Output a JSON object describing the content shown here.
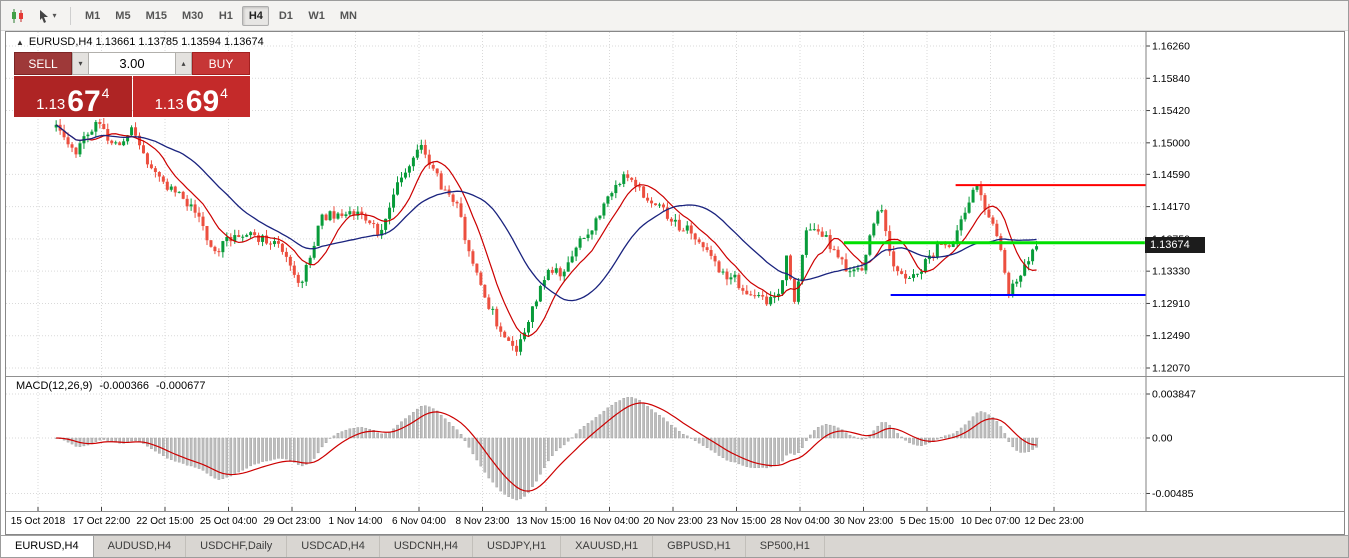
{
  "toolbar": {
    "timeframes": [
      {
        "label": "M1",
        "active": false
      },
      {
        "label": "M5",
        "active": false
      },
      {
        "label": "M15",
        "active": false
      },
      {
        "label": "M30",
        "active": false
      },
      {
        "label": "H1",
        "active": false
      },
      {
        "label": "H4",
        "active": true
      },
      {
        "label": "D1",
        "active": false
      },
      {
        "label": "W1",
        "active": false
      },
      {
        "label": "MN",
        "active": false
      }
    ]
  },
  "chart": {
    "header": "EURUSD,H4 1.13661 1.13785 1.13594 1.13674",
    "symbol": "EURUSD,H4",
    "current_price": "1.13674",
    "price_axis": [
      "1.16260",
      "1.15840",
      "1.15420",
      "1.15000",
      "1.14590",
      "1.14170",
      "1.13750",
      "1.13330",
      "1.12910",
      "1.12490",
      "1.12070"
    ],
    "time_axis": [
      "15 Oct 2018",
      "17 Oct 22:00",
      "22 Oct 15:00",
      "25 Oct 04:00",
      "29 Oct 23:00",
      "1 Nov 14:00",
      "6 Nov 04:00",
      "8 Nov 23:00",
      "13 Nov 15:00",
      "16 Nov 04:00",
      "20 Nov 23:00",
      "23 Nov 15:00",
      "28 Nov 04:00",
      "30 Nov 23:00",
      "5 Dec 15:00",
      "10 Dec 07:00",
      "12 Dec 23:00"
    ]
  },
  "trade_panel": {
    "sell_label": "SELL",
    "buy_label": "BUY",
    "volume": "3.00",
    "sell_price": {
      "base": "1.13",
      "pips": "67",
      "pipette": "4"
    },
    "buy_price": {
      "base": "1.13",
      "pips": "69",
      "pipette": "4"
    }
  },
  "macd": {
    "label": "MACD(12,26,9)",
    "value_main": "-0.000366",
    "value_signal": "-0.000677",
    "axis": [
      "0.003847",
      "0.00",
      "-0.00485"
    ]
  },
  "bottom_tabs": [
    {
      "label": "EURUSD,H4",
      "active": true
    },
    {
      "label": "AUDUSD,H4",
      "active": false
    },
    {
      "label": "USDCHF,Daily",
      "active": false
    },
    {
      "label": "USDCAD,H4",
      "active": false
    },
    {
      "label": "USDCNH,H4",
      "active": false
    },
    {
      "label": "USDJPY,H1",
      "active": false
    },
    {
      "label": "XAUUSD,H1",
      "active": false
    },
    {
      "label": "GBPUSD,H1",
      "active": false
    },
    {
      "label": "SP500,H1",
      "active": false
    }
  ],
  "chart_data": {
    "type": "candlestick",
    "instrument": "EURUSD",
    "timeframe": "H4",
    "current_ohlc": {
      "open": 1.13661,
      "high": 1.13785,
      "low": 1.13594,
      "close": 1.13674
    },
    "price_axis_values": [
      1.1626,
      1.1584,
      1.1542,
      1.15,
      1.1459,
      1.1417,
      1.1375,
      1.1333,
      1.1291,
      1.1249,
      1.1207
    ],
    "macd_axis_values": [
      0.003847,
      0,
      -0.00485
    ],
    "levels": [
      {
        "name": "resistance-line",
        "color": "#ff0000",
        "price": 1.1445,
        "x1": 0.833,
        "x2": 1.0,
        "width": 2
      },
      {
        "name": "pivot-line",
        "color": "#00e000",
        "price": 1.137,
        "x1": 0.735,
        "x2": 0.999,
        "width": 3
      },
      {
        "name": "support-line",
        "color": "#0000ff",
        "price": 1.1302,
        "x1": 0.776,
        "x2": 1.0,
        "width": 2
      }
    ],
    "indicators": {
      "ma_fast": {
        "type": "SMA",
        "period": 9,
        "color": "#cc0000"
      },
      "ma_slow": {
        "type": "SMA",
        "period": 26,
        "color": "#1a237e"
      },
      "macd": {
        "fast": 12,
        "slow": 26,
        "signal": 9,
        "histogram_color": "#bdbdbd",
        "signal_color": "#cc0000",
        "current_macd": -0.000366,
        "current_signal": -0.000677
      }
    },
    "colors": {
      "up": "#089b3a",
      "down": "#ec4f3f",
      "background": "#ffffff",
      "grid": "#d9d9d9"
    },
    "candle_count": 248,
    "candle_x_range": [
      0.044,
      0.904
    ],
    "seed": 20181212,
    "noise": 0.0014,
    "wick": 0.0008,
    "price_keyframes": [
      [
        0.0,
        1.152
      ],
      [
        0.02,
        1.149
      ],
      [
        0.041,
        1.153
      ],
      [
        0.061,
        1.1495
      ],
      [
        0.077,
        1.1515
      ],
      [
        0.097,
        1.147
      ],
      [
        0.117,
        1.144
      ],
      [
        0.138,
        1.1415
      ],
      [
        0.163,
        1.136
      ],
      [
        0.184,
        1.1385
      ],
      [
        0.204,
        1.1375
      ],
      [
        0.224,
        1.137
      ],
      [
        0.25,
        1.131
      ],
      [
        0.27,
        1.1405
      ],
      [
        0.291,
        1.141
      ],
      [
        0.311,
        1.1405
      ],
      [
        0.33,
        1.138
      ],
      [
        0.347,
        1.1445
      ],
      [
        0.372,
        1.1495
      ],
      [
        0.393,
        1.1445
      ],
      [
        0.408,
        1.142
      ],
      [
        0.423,
        1.135
      ],
      [
        0.439,
        1.1295
      ],
      [
        0.459,
        1.124
      ],
      [
        0.469,
        1.1233
      ],
      [
        0.485,
        1.128
      ],
      [
        0.5,
        1.1335
      ],
      [
        0.515,
        1.133
      ],
      [
        0.531,
        1.137
      ],
      [
        0.546,
        1.1385
      ],
      [
        0.566,
        1.144
      ],
      [
        0.582,
        1.1462
      ],
      [
        0.602,
        1.143
      ],
      [
        0.617,
        1.1415
      ],
      [
        0.638,
        1.139
      ],
      [
        0.658,
        1.1375
      ],
      [
        0.673,
        1.134
      ],
      [
        0.694,
        1.132
      ],
      [
        0.709,
        1.13
      ],
      [
        0.724,
        1.1295
      ],
      [
        0.74,
        1.131
      ],
      [
        0.746,
        1.1365
      ],
      [
        0.752,
        1.128
      ],
      [
        0.765,
        1.139
      ],
      [
        0.781,
        1.138
      ],
      [
        0.799,
        1.1355
      ],
      [
        0.809,
        1.133
      ],
      [
        0.823,
        1.134
      ],
      [
        0.84,
        1.1425
      ],
      [
        0.852,
        1.134
      ],
      [
        0.867,
        1.1325
      ],
      [
        0.883,
        1.1335
      ],
      [
        0.901,
        1.137
      ],
      [
        0.916,
        1.1372
      ],
      [
        0.929,
        1.142
      ],
      [
        0.936,
        1.1447
      ],
      [
        0.949,
        1.141
      ],
      [
        0.962,
        1.1375
      ],
      [
        0.972,
        1.1305
      ],
      [
        0.983,
        1.133
      ],
      [
        0.993,
        1.135
      ],
      [
        1.0,
        1.1367
      ]
    ]
  }
}
